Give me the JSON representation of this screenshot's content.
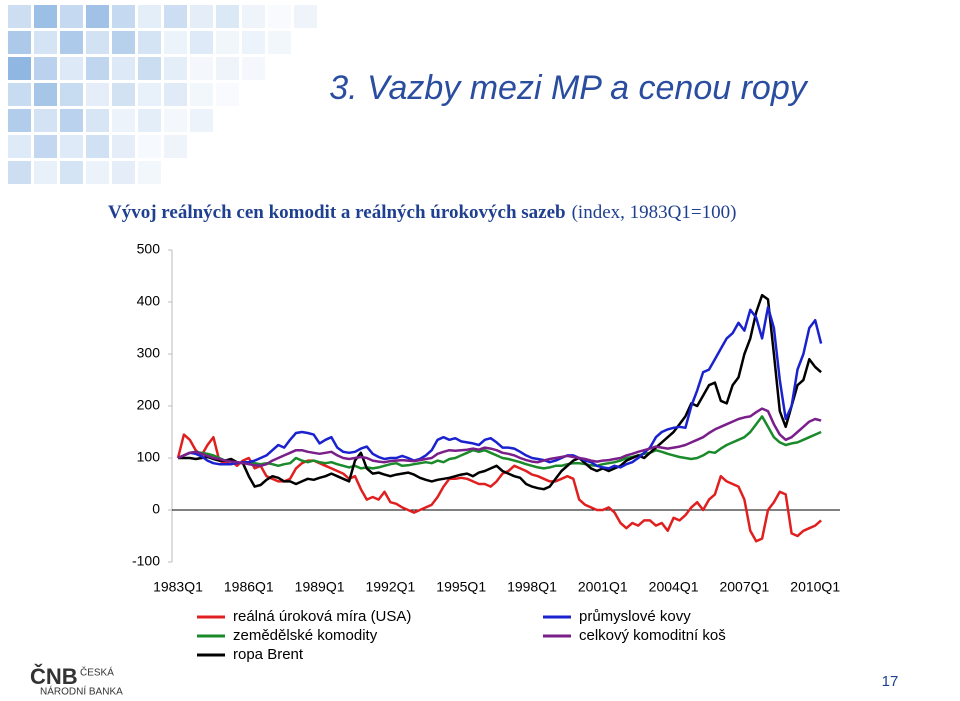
{
  "slide_title": "3. Vazby mezi MP a cenou ropy",
  "page_number": 17,
  "logo": {
    "mark": "ČNB",
    "line1": "ČESKÁ",
    "line2": "NÁRODNÍ BANKA"
  },
  "chart_data": {
    "type": "line",
    "title": "Vývoj reálných cen komodit a reálných úrokových sazeb",
    "subtitle": "(index, 1983Q1=100)",
    "categories": [
      "1983Q1",
      null,
      null,
      null,
      null,
      null,
      null,
      null,
      null,
      null,
      null,
      null,
      "1986Q1",
      null,
      null,
      null,
      null,
      null,
      null,
      null,
      null,
      null,
      null,
      null,
      "1989Q1",
      null,
      null,
      null,
      null,
      null,
      null,
      null,
      null,
      null,
      null,
      null,
      "1992Q1",
      null,
      null,
      null,
      null,
      null,
      null,
      null,
      null,
      null,
      null,
      null,
      "1995Q1",
      null,
      null,
      null,
      null,
      null,
      null,
      null,
      null,
      null,
      null,
      null,
      "1998Q1",
      null,
      null,
      null,
      null,
      null,
      null,
      null,
      null,
      null,
      null,
      null,
      "2001Q1",
      null,
      null,
      null,
      null,
      null,
      null,
      null,
      null,
      null,
      null,
      null,
      "2004Q1",
      null,
      null,
      null,
      null,
      null,
      null,
      null,
      null,
      null,
      null,
      null,
      "2007Q1",
      null,
      null,
      null,
      null,
      null,
      null,
      null,
      null,
      null,
      null,
      null,
      "2010Q1",
      null
    ],
    "ylim": [
      -100,
      500
    ],
    "yticks": [
      -100,
      0,
      100,
      200,
      300,
      400,
      500
    ],
    "series": [
      {
        "name": "reálná úroková míra (USA)",
        "color": "#e02020",
        "values": [
          100,
          145,
          135,
          115,
          105,
          125,
          140,
          95,
          90,
          95,
          85,
          95,
          100,
          80,
          85,
          65,
          60,
          55,
          55,
          60,
          80,
          90,
          95,
          95,
          90,
          85,
          80,
          75,
          70,
          60,
          65,
          40,
          20,
          25,
          20,
          35,
          15,
          12,
          5,
          0,
          -5,
          0,
          5,
          10,
          25,
          45,
          60,
          60,
          62,
          60,
          55,
          50,
          50,
          45,
          55,
          70,
          75,
          85,
          80,
          75,
          68,
          65,
          60,
          55,
          55,
          60,
          65,
          60,
          20,
          10,
          5,
          0,
          0,
          5,
          -5,
          -25,
          -35,
          -25,
          -30,
          -20,
          -20,
          -30,
          -25,
          -40,
          -15,
          -20,
          -10,
          5,
          15,
          0,
          20,
          30,
          65,
          55,
          50,
          45,
          20,
          -40,
          -60,
          -55,
          0,
          15,
          35,
          30,
          -45,
          -50,
          -40,
          -35,
          -30,
          -20
        ]
      },
      {
        "name": "zemědělské komodity",
        "color": "#1a8a2a",
        "values": [
          100,
          105,
          110,
          112,
          110,
          108,
          105,
          100,
          95,
          95,
          92,
          90,
          92,
          90,
          88,
          90,
          88,
          85,
          88,
          90,
          100,
          95,
          92,
          95,
          92,
          90,
          92,
          88,
          85,
          82,
          85,
          80,
          82,
          80,
          82,
          85,
          88,
          90,
          85,
          86,
          88,
          90,
          92,
          90,
          95,
          92,
          98,
          100,
          105,
          110,
          115,
          112,
          115,
          110,
          105,
          100,
          98,
          95,
          92,
          88,
          85,
          82,
          80,
          82,
          85,
          85,
          88,
          90,
          90,
          88,
          86,
          85,
          88,
          90,
          92,
          95,
          100,
          102,
          105,
          108,
          110,
          115,
          112,
          108,
          105,
          102,
          100,
          98,
          100,
          105,
          112,
          110,
          118,
          125,
          130,
          135,
          140,
          150,
          165,
          180,
          160,
          140,
          130,
          125,
          128,
          130,
          135,
          140,
          145,
          150
        ]
      },
      {
        "name": "ropa Brent",
        "color": "#000000",
        "values": [
          100,
          100,
          100,
          98,
          100,
          102,
          98,
          95,
          95,
          98,
          92,
          90,
          65,
          45,
          48,
          58,
          65,
          62,
          55,
          55,
          50,
          55,
          60,
          58,
          62,
          65,
          70,
          65,
          60,
          55,
          95,
          110,
          80,
          70,
          72,
          68,
          65,
          68,
          70,
          72,
          68,
          62,
          58,
          55,
          58,
          60,
          62,
          65,
          68,
          70,
          65,
          72,
          75,
          80,
          85,
          75,
          70,
          65,
          62,
          50,
          45,
          42,
          40,
          45,
          60,
          75,
          85,
          95,
          100,
          90,
          80,
          75,
          80,
          75,
          80,
          85,
          95,
          100,
          105,
          100,
          110,
          120,
          130,
          140,
          150,
          165,
          180,
          205,
          200,
          220,
          240,
          245,
          210,
          205,
          240,
          255,
          300,
          330,
          380,
          413,
          405,
          300,
          190,
          160,
          200,
          240,
          250,
          290,
          275,
          265
        ]
      },
      {
        "name": "průmyslové kovy",
        "color": "#1a22d0",
        "values": [
          100,
          105,
          110,
          108,
          103,
          95,
          90,
          88,
          88,
          88,
          90,
          92,
          92,
          95,
          100,
          105,
          115,
          125,
          120,
          135,
          148,
          150,
          148,
          145,
          128,
          135,
          140,
          120,
          112,
          110,
          112,
          118,
          122,
          108,
          102,
          98,
          100,
          100,
          104,
          100,
          95,
          98,
          105,
          115,
          135,
          140,
          135,
          138,
          132,
          130,
          128,
          125,
          135,
          138,
          130,
          120,
          120,
          118,
          112,
          105,
          100,
          98,
          96,
          92,
          95,
          100,
          105,
          105,
          100,
          95,
          92,
          85,
          82,
          80,
          85,
          82,
          88,
          92,
          100,
          110,
          120,
          140,
          150,
          155,
          158,
          160,
          158,
          200,
          230,
          265,
          270,
          290,
          310,
          330,
          340,
          360,
          345,
          385,
          370,
          330,
          390,
          350,
          250,
          175,
          200,
          270,
          300,
          350,
          365,
          320
        ]
      },
      {
        "name": "celkový komoditní koš",
        "color": "#7a1f8a",
        "values": [
          100,
          105,
          110,
          112,
          108,
          104,
          100,
          98,
          95,
          93,
          92,
          90,
          88,
          86,
          85,
          88,
          95,
          100,
          105,
          110,
          115,
          115,
          112,
          110,
          108,
          110,
          112,
          105,
          100,
          98,
          100,
          102,
          100,
          95,
          93,
          92,
          94,
          95,
          96,
          95,
          94,
          96,
          98,
          100,
          108,
          112,
          115,
          114,
          115,
          116,
          118,
          116,
          120,
          118,
          115,
          110,
          108,
          105,
          100,
          96,
          93,
          92,
          95,
          98,
          100,
          102,
          104,
          102,
          100,
          98,
          95,
          93,
          95,
          96,
          98,
          100,
          105,
          108,
          112,
          115,
          118,
          122,
          120,
          118,
          120,
          122,
          125,
          130,
          135,
          140,
          148,
          155,
          160,
          165,
          170,
          175,
          178,
          180,
          188,
          195,
          190,
          165,
          145,
          135,
          140,
          150,
          160,
          170,
          175,
          172
        ]
      }
    ]
  }
}
